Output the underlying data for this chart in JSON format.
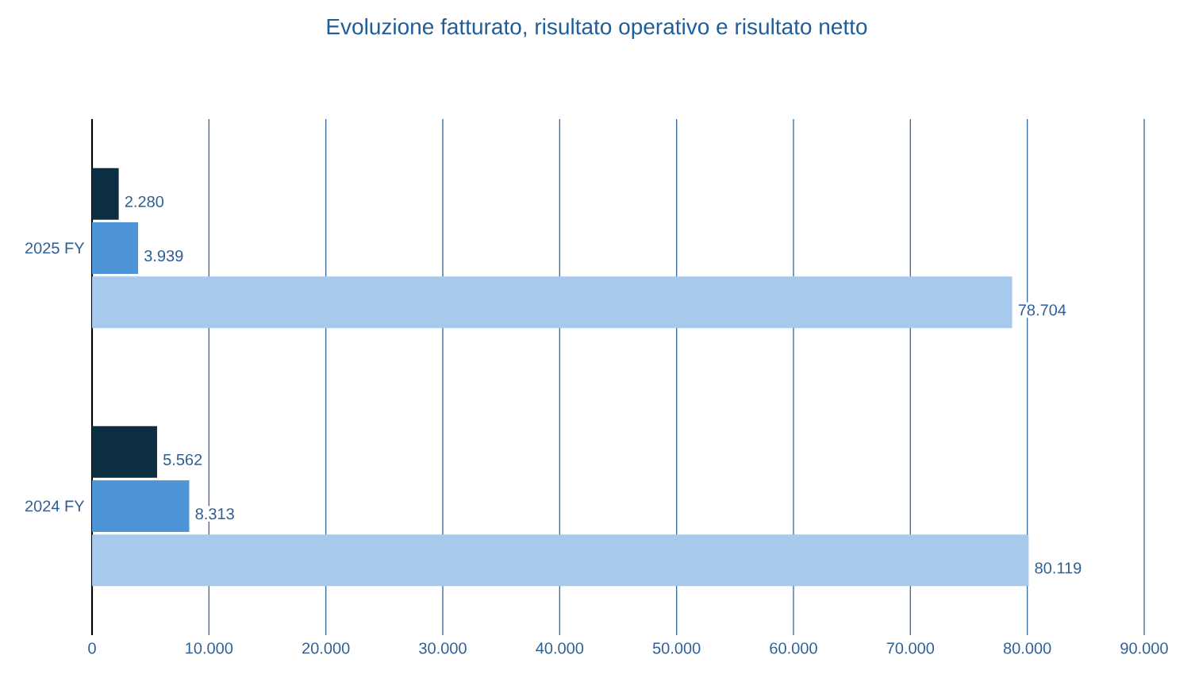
{
  "chart_data": {
    "type": "bar",
    "orientation": "horizontal",
    "title": "Evoluzione fatturato, risultato operativo e risultato netto",
    "categories": [
      "2025 FY",
      "2024 FY"
    ],
    "series": [
      {
        "color": "#0b2e40",
        "values": [
          2280,
          5562
        ],
        "value_labels": [
          "2.280",
          "5.562"
        ]
      },
      {
        "color": "#4d94d9",
        "values": [
          3939,
          8313
        ],
        "value_labels": [
          "3.939",
          "8.313"
        ]
      },
      {
        "color": "#a6c9ec",
        "values": [
          78704,
          80119
        ],
        "value_labels": [
          "78.704",
          "80.119"
        ]
      }
    ],
    "xlim": [
      0,
      90000
    ],
    "xticks": [
      0,
      {
        "value": 10000,
        "label": "10.000"
      },
      {
        "value": 20000,
        "label": "20.000"
      },
      {
        "value": 30000,
        "label": "30.000"
      },
      {
        "value": 40000,
        "label": "40.000"
      },
      {
        "value": 50000,
        "label": "50.000"
      },
      {
        "value": 60000,
        "label": "60.000"
      },
      {
        "value": 70000,
        "label": "70.000"
      },
      {
        "value": 80000,
        "label": "80.000"
      },
      {
        "value": 90000,
        "label": "90.000"
      }
    ],
    "grid": "x"
  }
}
